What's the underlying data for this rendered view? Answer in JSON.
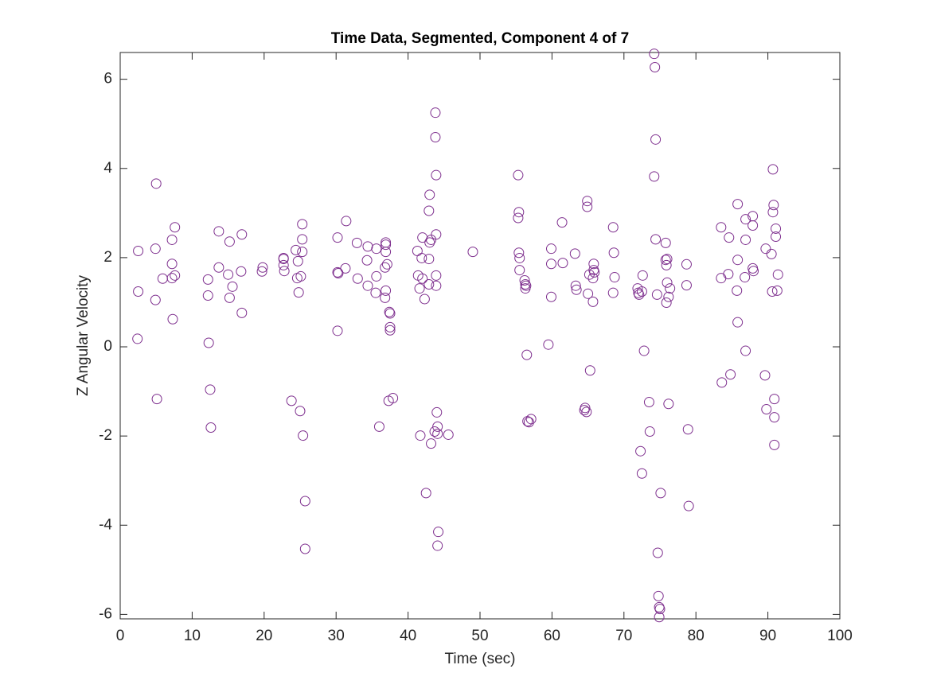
{
  "chart_data": {
    "type": "scatter",
    "title": "Time Data, Segmented, Component 4 of 7",
    "x_label": "Time (sec)",
    "y_label": "Z Angular Velocity",
    "color": "#7e2f8e",
    "marker": "o",
    "xlim": [
      0,
      100
    ],
    "xticks": [
      0,
      10,
      20,
      30,
      40,
      50,
      60,
      70,
      80,
      90,
      100
    ],
    "ylim": [
      -6.1,
      6.6
    ],
    "yticks": [
      -6,
      -4,
      -2,
      0,
      2,
      4,
      6
    ],
    "grid": false,
    "x": [
      2.5,
      2.5,
      2.4,
      5.0,
      4.9,
      4.9,
      5.1,
      5.9,
      7.2,
      7.2,
      7.2,
      7.6,
      7.6,
      7.3,
      12.2,
      12.2,
      12.3,
      12.5,
      12.6,
      13.7,
      13.7,
      15.2,
      15.0,
      15.6,
      15.2,
      16.9,
      16.8,
      16.9,
      19.8,
      19.7,
      22.7,
      22.7,
      22.8,
      22.7,
      24.4,
      24.7,
      24.6,
      24.8,
      25.1,
      25.3,
      25.3,
      25.3,
      23.8,
      25.0,
      25.4,
      25.7,
      25.7,
      30.2,
      30.2,
      30.3,
      30.2,
      31.4,
      31.3,
      32.9,
      33.0,
      34.3,
      34.4,
      34.4,
      35.6,
      35.6,
      35.5,
      36.0,
      36.8,
      36.9,
      36.9,
      36.9,
      37.1,
      36.8,
      36.9,
      37.4,
      37.5,
      37.5,
      37.5,
      37.3,
      37.9,
      41.3,
      41.4,
      41.6,
      41.7,
      42.0,
      41.9,
      42.3,
      42.0,
      42.5,
      42.9,
      43.0,
      43.0,
      42.9,
      43.2,
      42.9,
      43.2,
      43.8,
      43.8,
      43.9,
      43.9,
      43.9,
      43.9,
      43.7,
      44.0,
      44.1,
      44.1,
      44.2,
      44.1,
      45.6,
      49.0,
      55.3,
      55.4,
      55.3,
      55.4,
      55.5,
      55.5,
      56.2,
      56.3,
      56.3,
      56.4,
      56.5,
      56.6,
      56.8,
      57.1,
      59.5,
      59.9,
      59.9,
      59.9,
      61.4,
      61.5,
      63.2,
      63.3,
      63.4,
      64.5,
      64.6,
      64.8,
      64.9,
      64.9,
      65.2,
      65.0,
      65.3,
      65.7,
      65.8,
      65.8,
      65.9,
      65.7,
      68.5,
      68.6,
      68.7,
      68.5,
      71.9,
      72.0,
      72.1,
      72.5,
      72.6,
      72.3,
      72.5,
      72.8,
      73.5,
      73.6,
      74.2,
      74.3,
      74.4,
      74.2,
      74.4,
      74.6,
      74.7,
      74.8,
      74.9,
      75.0,
      74.9,
      75.1,
      75.8,
      75.8,
      75.9,
      76.0,
      76.0,
      75.9,
      76.2,
      76.4,
      76.2,
      78.7,
      78.7,
      78.9,
      79.0,
      83.5,
      83.5,
      83.6,
      84.5,
      84.6,
      84.8,
      85.8,
      85.8,
      85.7,
      85.8,
      86.8,
      86.9,
      86.9,
      86.9,
      87.9,
      87.9,
      87.9,
      88.0,
      89.7,
      89.6,
      89.8,
      90.5,
      90.7,
      90.7,
      90.8,
      90.6,
      91.1,
      91.1,
      91.3,
      91.4,
      90.9,
      90.9,
      90.9
    ],
    "values": [
      2.15,
      1.24,
      0.18,
      3.66,
      2.2,
      1.05,
      -1.17,
      1.53,
      2.4,
      1.86,
      1.54,
      2.68,
      1.6,
      0.62,
      1.51,
      1.15,
      0.09,
      -0.96,
      -1.81,
      2.59,
      1.78,
      2.36,
      1.62,
      1.35,
      1.1,
      2.52,
      1.69,
      0.76,
      1.78,
      1.69,
      1.97,
      1.83,
      1.7,
      1.99,
      2.17,
      1.92,
      1.54,
      1.22,
      1.58,
      2.41,
      2.13,
      2.75,
      -1.21,
      -1.44,
      -1.99,
      -3.46,
      -4.53,
      2.45,
      1.67,
      1.65,
      0.36,
      2.82,
      1.76,
      2.33,
      1.53,
      1.94,
      2.25,
      1.37,
      2.2,
      1.58,
      1.21,
      -1.79,
      1.1,
      2.34,
      2.29,
      2.13,
      1.85,
      1.78,
      1.26,
      0.78,
      0.75,
      0.44,
      0.37,
      -1.21,
      -1.15,
      2.15,
      1.6,
      1.31,
      -1.99,
      2.45,
      1.99,
      1.07,
      1.53,
      -3.28,
      1.97,
      2.34,
      3.41,
      3.05,
      -2.17,
      1.4,
      2.4,
      5.25,
      4.7,
      3.85,
      2.52,
      1.6,
      1.37,
      -1.9,
      -1.47,
      -1.79,
      -1.95,
      -4.15,
      -4.46,
      -1.97,
      2.13,
      3.85,
      3.02,
      2.89,
      2.11,
      1.99,
      1.72,
      1.49,
      1.4,
      1.31,
      1.37,
      -0.18,
      -1.67,
      -1.69,
      -1.62,
      0.05,
      2.2,
      1.86,
      1.12,
      2.79,
      1.88,
      2.09,
      1.37,
      1.28,
      -1.42,
      -1.37,
      -1.46,
      3.27,
      3.14,
      1.62,
      1.19,
      -0.53,
      1.54,
      1.86,
      1.72,
      1.67,
      1.01,
      2.68,
      2.11,
      1.56,
      1.21,
      1.31,
      1.21,
      1.17,
      1.24,
      1.6,
      -2.34,
      -2.84,
      -0.09,
      -1.24,
      -1.9,
      6.57,
      6.27,
      4.65,
      3.82,
      2.41,
      1.17,
      -4.62,
      -5.59,
      -5.84,
      -5.88,
      -6.06,
      -3.28,
      2.33,
      1.95,
      1.83,
      1.97,
      1.44,
      0.99,
      1.12,
      1.31,
      -1.28,
      1.85,
      1.38,
      -1.85,
      -3.57,
      2.68,
      1.54,
      -0.8,
      1.63,
      2.45,
      -0.62,
      3.2,
      1.95,
      1.26,
      0.55,
      1.56,
      2.86,
      2.4,
      -0.09,
      2.72,
      2.93,
      1.76,
      1.7,
      2.2,
      -0.64,
      -1.4,
      2.08,
      3.98,
      3.02,
      3.18,
      1.24,
      2.65,
      2.47,
      1.26,
      1.62,
      -1.17,
      -1.58,
      -2.2
    ]
  }
}
